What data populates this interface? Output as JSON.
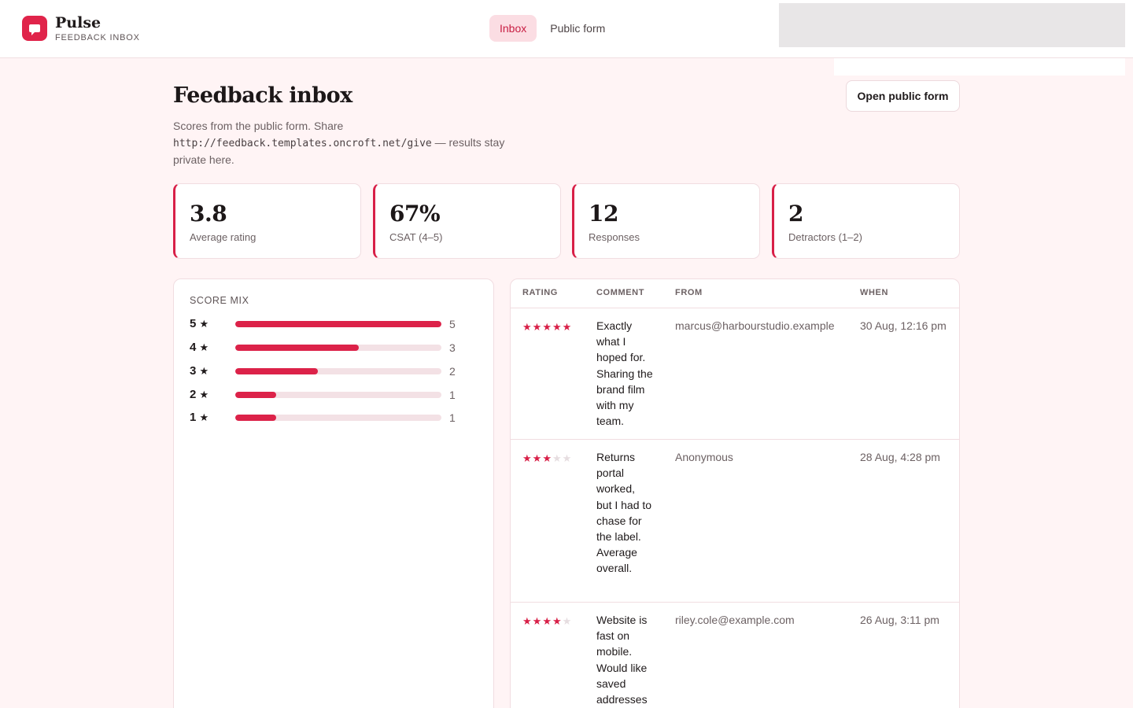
{
  "app": {
    "name": "Pulse",
    "subtitle": "FEEDBACK INBOX",
    "logo_icon": "chat-bubble-icon",
    "accent": "#e0244a"
  },
  "nav": {
    "tabs": [
      {
        "label": "Inbox",
        "active": true
      },
      {
        "label": "Public form",
        "active": false
      }
    ]
  },
  "page": {
    "title": "Feedback inbox",
    "desc_before": "Scores from the public form. Share",
    "desc_url": "http://feedback.templates.oncroft.net/give",
    "desc_after": "— results stay private here.",
    "open_button": "Open public form"
  },
  "stats": [
    {
      "value": "3.8",
      "label": "Average rating"
    },
    {
      "value": "67%",
      "label": "CSAT (4–5)"
    },
    {
      "value": "12",
      "label": "Responses"
    },
    {
      "value": "2",
      "label": "Detractors (1–2)"
    }
  ],
  "score_mix": {
    "title": "SCORE MIX",
    "rows": [
      {
        "label": "5",
        "star": "★",
        "count": "5",
        "fraction": 1.0
      },
      {
        "label": "4",
        "star": "★",
        "count": "3",
        "fraction": 0.6
      },
      {
        "label": "3",
        "star": "★",
        "count": "2",
        "fraction": 0.4
      },
      {
        "label": "2",
        "star": "★",
        "count": "1",
        "fraction": 0.2
      },
      {
        "label": "1",
        "star": "★",
        "count": "1",
        "fraction": 0.2
      }
    ]
  },
  "table": {
    "headers": {
      "rating": "RATING",
      "comment": "COMMENT",
      "from": "FROM",
      "when": "WHEN"
    },
    "rows": [
      {
        "rating": 5,
        "comment": "Exactly what I hoped for. Sharing the brand film with my team.",
        "from": "marcus@harbourstudio.example",
        "when": "30 Aug, 12:16 pm"
      },
      {
        "rating": 3,
        "comment": "Returns portal worked, but I had to chase for the label. Average overall.",
        "from": "Anonymous",
        "when": "28 Aug, 4:28 pm"
      },
      {
        "rating": 4,
        "comment": "Website is fast on mobile. Would like saved addresses",
        "from": "riley.cole@example.com",
        "when": "26 Aug, 3:11 pm"
      }
    ]
  }
}
